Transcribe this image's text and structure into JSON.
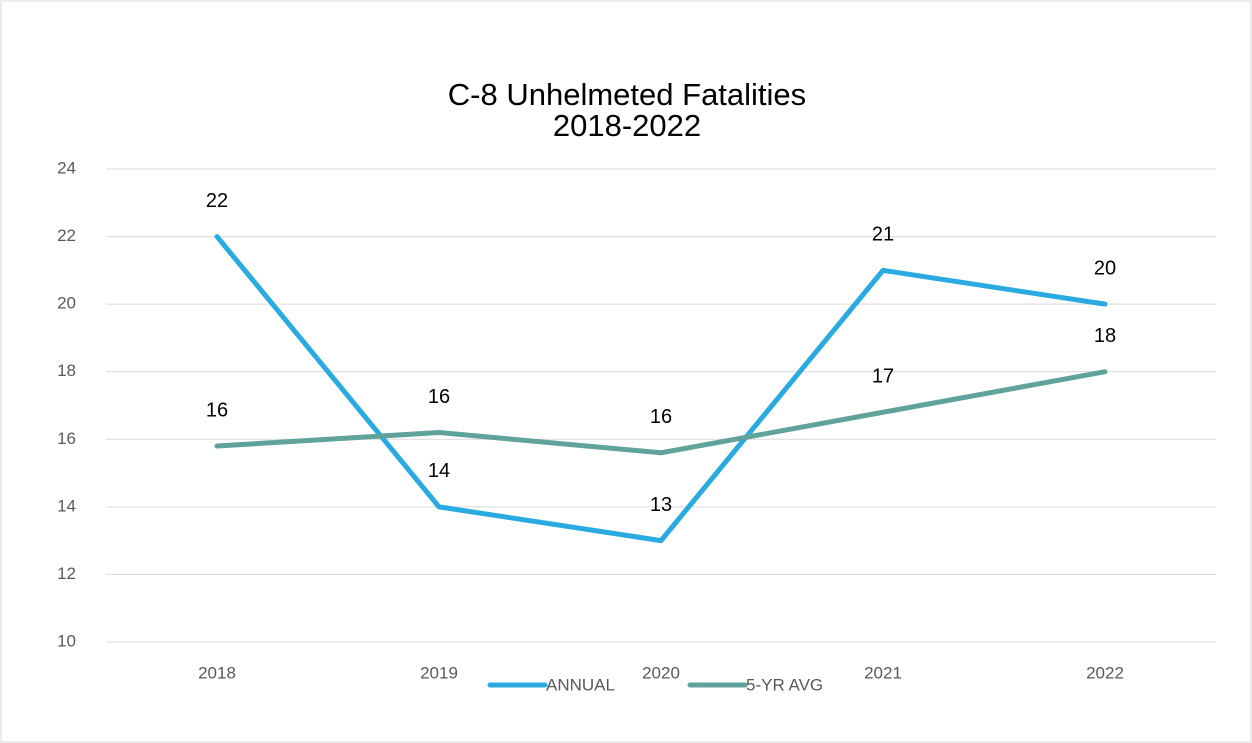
{
  "chart_data": {
    "type": "line",
    "title": "C-8 Unhelmeted Fatalities",
    "subtitle": "2018-2022",
    "categories": [
      "2018",
      "2019",
      "2020",
      "2021",
      "2022"
    ],
    "series": [
      {
        "name": "ANNUAL",
        "color": "#29abe2",
        "values": [
          22,
          14,
          13,
          21,
          20
        ]
      },
      {
        "name": "5-YR AVG",
        "color": "#5fa39a",
        "values": [
          15.8,
          16.2,
          15.6,
          16.8,
          18
        ],
        "value_labels": [
          "16",
          "16",
          "16",
          "17",
          "18"
        ]
      }
    ],
    "ylim": [
      10,
      24
    ],
    "yticks": [
      10,
      12,
      14,
      16,
      18,
      20,
      22,
      24
    ],
    "grid": true,
    "legend": "bottom"
  }
}
